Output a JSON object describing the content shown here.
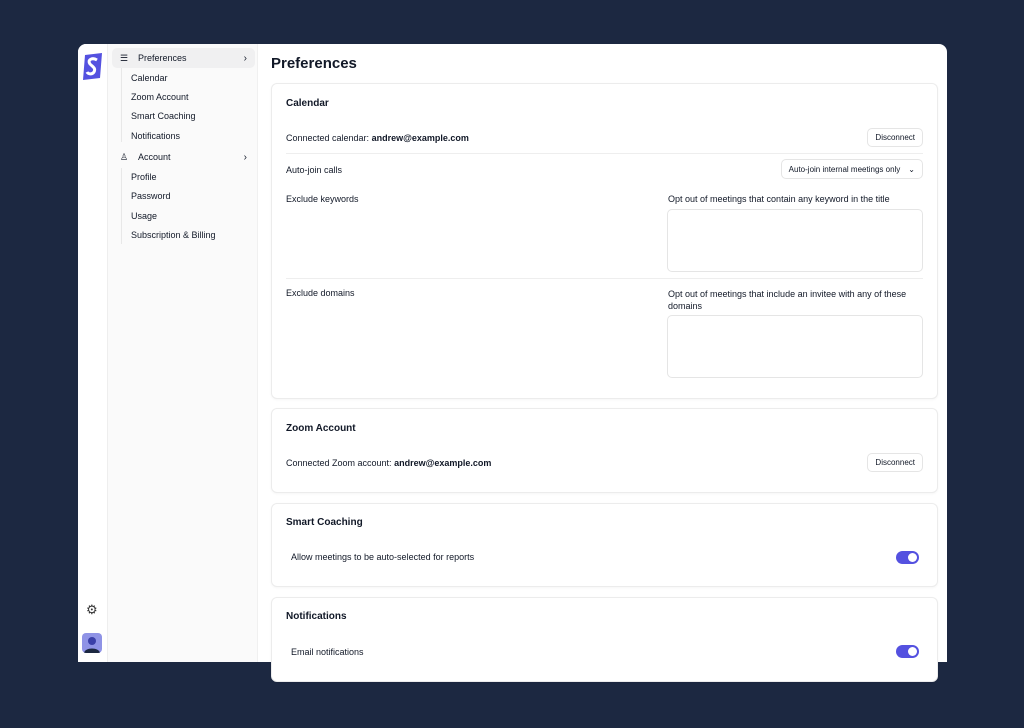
{
  "colors": {
    "accent": "#5451e0",
    "background": "#1c2841"
  },
  "sidebar": {
    "groups": [
      {
        "label": "Preferences",
        "icon": "sliders-icon",
        "items": [
          "Calendar",
          "Zoom Account",
          "Smart Coaching",
          "Notifications"
        ]
      },
      {
        "label": "Account",
        "icon": "user-icon",
        "items": [
          "Profile",
          "Password",
          "Usage",
          "Subscription & Billing"
        ]
      }
    ]
  },
  "page": {
    "title": "Preferences"
  },
  "calendar": {
    "title": "Calendar",
    "connected_label": "Connected calendar: ",
    "connected_email": "andrew@example.com",
    "disconnect": "Disconnect",
    "autojoin_label": "Auto-join calls",
    "autojoin_value": "Auto-join internal meetings only",
    "keywords_label": "Exclude keywords",
    "keywords_help": "Opt out of meetings that contain any keyword in the title",
    "domains_label": "Exclude domains",
    "domains_help": "Opt out of meetings that include an invitee with any of these domains"
  },
  "zoom": {
    "title": "Zoom Account",
    "connected_label": "Connected Zoom account: ",
    "connected_email": "andrew@example.com",
    "disconnect": "Disconnect"
  },
  "coaching": {
    "title": "Smart Coaching",
    "toggle_label": "Allow meetings to be auto-selected for reports",
    "enabled": true
  },
  "notifications": {
    "title": "Notifications",
    "toggle_label": "Email notifications",
    "enabled": true
  }
}
